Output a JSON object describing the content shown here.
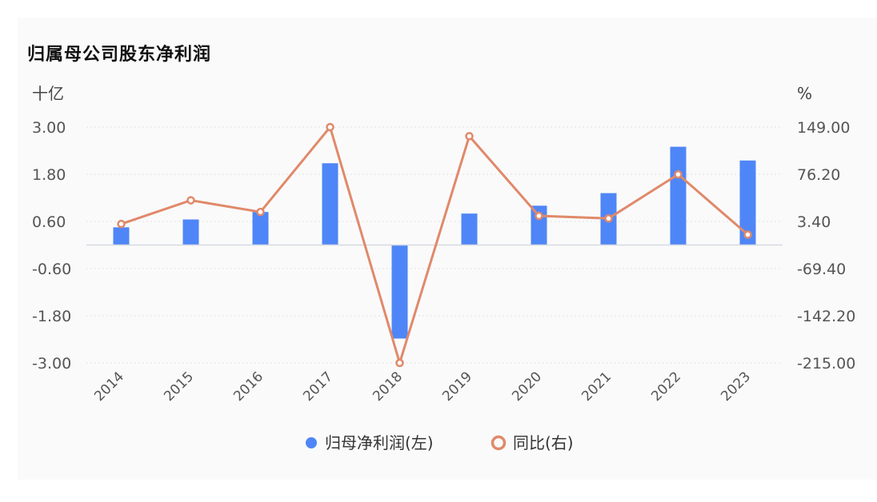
{
  "chart_data": {
    "type": "bar",
    "title": "归属母公司股东净利润",
    "left_unit": "十亿",
    "right_unit": "%",
    "categories": [
      "2014",
      "2015",
      "2016",
      "2017",
      "2018",
      "2019",
      "2020",
      "2021",
      "2022",
      "2023"
    ],
    "left_ticks": [
      "3.00",
      "1.80",
      "0.60",
      "-0.60",
      "-1.80",
      "-3.00"
    ],
    "right_ticks": [
      "149.00",
      "76.20",
      "3.40",
      "-69.40",
      "-142.20",
      "-215.00"
    ],
    "ylim_left": [
      -3.0,
      3.0
    ],
    "ylim_right": [
      -215.0,
      149.0
    ],
    "series": [
      {
        "name": "归母净利润(左)",
        "type": "bar",
        "axis": "left",
        "color": "#4f86f7",
        "values": [
          0.45,
          0.65,
          0.84,
          2.08,
          -2.38,
          0.8,
          1.0,
          1.32,
          2.5,
          2.15
        ]
      },
      {
        "name": "同比(右)",
        "type": "line",
        "axis": "right",
        "color": "#e0896a",
        "values": [
          -0.5,
          36.0,
          18.0,
          149.0,
          -215.0,
          135.0,
          12.0,
          8.0,
          76.0,
          -17.0
        ]
      }
    ],
    "legend": [
      {
        "label": "归母净利润(左)",
        "marker": "dot",
        "color": "#4f86f7"
      },
      {
        "label": "同比(右)",
        "marker": "ring",
        "color": "#e0896a"
      }
    ]
  }
}
